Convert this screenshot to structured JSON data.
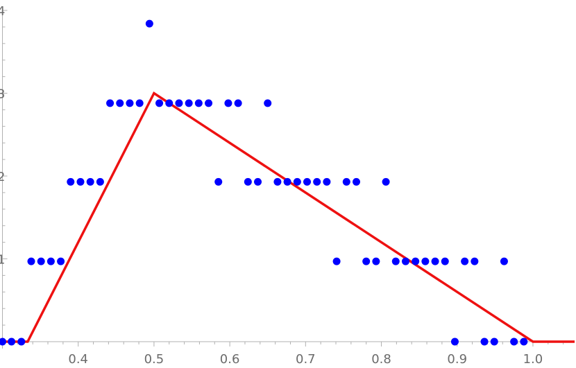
{
  "chart_data": {
    "type": "scatter",
    "title": "",
    "xlabel": "",
    "ylabel": "",
    "xlim": [
      0.3,
      1.055
    ],
    "ylim": [
      0,
      4
    ],
    "grid": false,
    "x_ticks": [
      0.4,
      0.5,
      0.6,
      0.7,
      0.8,
      0.9,
      1.0
    ],
    "x_tick_labels": [
      "0.4",
      "0.5",
      "0.6",
      "0.7",
      "0.8",
      "0.9",
      "1.0"
    ],
    "y_ticks": [
      1,
      2,
      3,
      4
    ],
    "y_tick_labels": [
      "1",
      "2",
      "3",
      "4"
    ],
    "series": [
      {
        "kind": "points",
        "color": "#0000ff",
        "points": [
          [
            0.3,
            0
          ],
          [
            0.312,
            0
          ],
          [
            0.325,
            0
          ],
          [
            0.338,
            0.97
          ],
          [
            0.351,
            0.97
          ],
          [
            0.364,
            0.97
          ],
          [
            0.377,
            0.97
          ],
          [
            0.39,
            1.93
          ],
          [
            0.403,
            1.93
          ],
          [
            0.416,
            1.93
          ],
          [
            0.429,
            1.93
          ],
          [
            0.442,
            2.88
          ],
          [
            0.455,
            2.88
          ],
          [
            0.468,
            2.88
          ],
          [
            0.481,
            2.88
          ],
          [
            0.494,
            3.84
          ],
          [
            0.507,
            2.88
          ],
          [
            0.52,
            2.88
          ],
          [
            0.533,
            2.88
          ],
          [
            0.546,
            2.88
          ],
          [
            0.559,
            2.88
          ],
          [
            0.572,
            2.88
          ],
          [
            0.585,
            1.93
          ],
          [
            0.598,
            2.88
          ],
          [
            0.611,
            2.88
          ],
          [
            0.624,
            1.93
          ],
          [
            0.637,
            1.93
          ],
          [
            0.65,
            2.88
          ],
          [
            0.663,
            1.93
          ],
          [
            0.676,
            1.93
          ],
          [
            0.689,
            1.93
          ],
          [
            0.702,
            1.93
          ],
          [
            0.715,
            1.93
          ],
          [
            0.728,
            1.93
          ],
          [
            0.741,
            0.97
          ],
          [
            0.754,
            1.93
          ],
          [
            0.767,
            1.93
          ],
          [
            0.78,
            0.97
          ],
          [
            0.793,
            0.97
          ],
          [
            0.806,
            1.93
          ],
          [
            0.819,
            0.97
          ],
          [
            0.832,
            0.97
          ],
          [
            0.845,
            0.97
          ],
          [
            0.858,
            0.97
          ],
          [
            0.871,
            0.97
          ],
          [
            0.884,
            0.97
          ],
          [
            0.897,
            0
          ],
          [
            0.91,
            0.97
          ],
          [
            0.923,
            0.97
          ],
          [
            0.936,
            0
          ],
          [
            0.949,
            0
          ],
          [
            0.962,
            0.97
          ],
          [
            0.975,
            0
          ],
          [
            0.988,
            0
          ]
        ]
      },
      {
        "kind": "line",
        "color": "#ee1111",
        "points": [
          [
            0.3,
            0
          ],
          [
            0.3333,
            0
          ],
          [
            0.5,
            3
          ],
          [
            1.0,
            0
          ],
          [
            1.055,
            0
          ]
        ]
      }
    ]
  }
}
